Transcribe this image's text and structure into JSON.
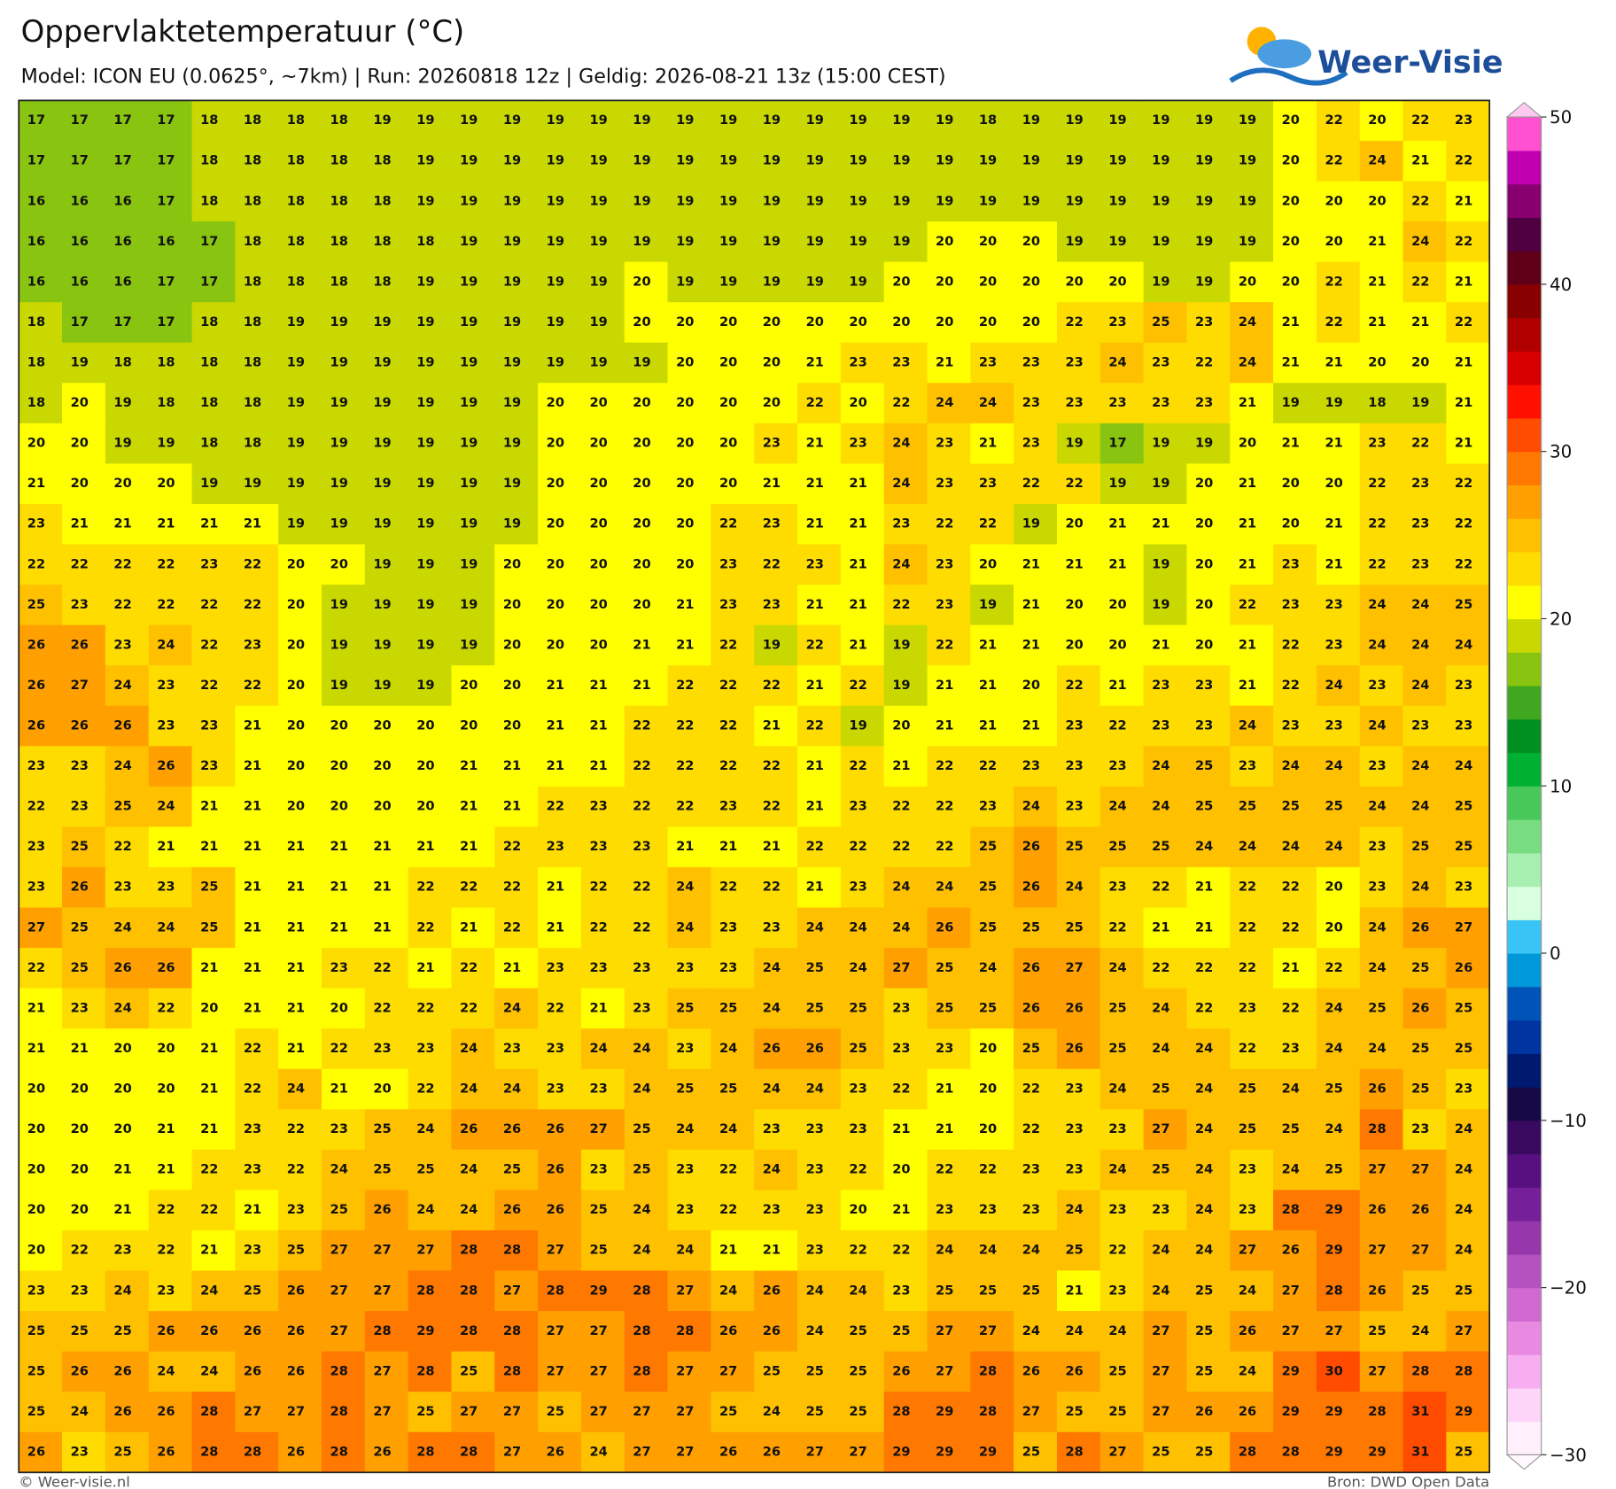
{
  "header": {
    "title": "Oppervlaktetemperatuur (°C)",
    "subtitle": "Model: ICON EU (0.0625°, ~7km)  |  Run: 20260818 12z  |  Geldig: 2026-08-21 13z (15:00 CEST)",
    "logo_text": "Weer-Visie"
  },
  "grid": {
    "rows": [
      [
        17,
        17,
        17,
        17,
        18,
        18,
        18,
        18,
        19,
        19,
        19,
        19,
        19,
        19,
        19,
        19,
        19,
        19,
        19,
        19,
        19,
        19,
        18,
        19,
        19,
        19,
        19,
        19,
        19,
        20,
        22,
        20,
        22,
        23
      ],
      [
        17,
        17,
        17,
        17,
        18,
        18,
        18,
        18,
        18,
        19,
        19,
        19,
        19,
        19,
        19,
        19,
        19,
        19,
        19,
        19,
        19,
        19,
        19,
        19,
        19,
        19,
        19,
        19,
        19,
        20,
        22,
        24,
        21,
        22
      ],
      [
        16,
        16,
        16,
        17,
        18,
        18,
        18,
        18,
        18,
        19,
        19,
        19,
        19,
        19,
        19,
        19,
        19,
        19,
        19,
        19,
        19,
        19,
        19,
        19,
        19,
        19,
        19,
        19,
        19,
        20,
        20,
        20,
        22,
        21
      ],
      [
        16,
        16,
        16,
        16,
        17,
        18,
        18,
        18,
        18,
        18,
        19,
        19,
        19,
        19,
        19,
        19,
        19,
        19,
        19,
        19,
        19,
        20,
        20,
        20,
        19,
        19,
        19,
        19,
        19,
        20,
        20,
        21,
        24,
        22
      ],
      [
        16,
        16,
        16,
        17,
        17,
        18,
        18,
        18,
        18,
        19,
        19,
        19,
        19,
        19,
        20,
        19,
        19,
        19,
        19,
        19,
        20,
        20,
        20,
        20,
        20,
        20,
        19,
        19,
        20,
        20,
        22,
        21,
        22,
        21
      ],
      [
        18,
        17,
        17,
        17,
        18,
        18,
        19,
        19,
        19,
        19,
        19,
        19,
        19,
        19,
        20,
        20,
        20,
        20,
        20,
        20,
        20,
        20,
        20,
        20,
        22,
        23,
        25,
        23,
        24,
        21,
        22,
        21,
        21,
        22
      ],
      [
        18,
        19,
        18,
        18,
        18,
        18,
        19,
        19,
        19,
        19,
        19,
        19,
        19,
        19,
        19,
        20,
        20,
        20,
        21,
        23,
        23,
        21,
        23,
        23,
        23,
        24,
        23,
        22,
        24,
        21,
        21,
        20,
        20,
        21
      ],
      [
        18,
        20,
        19,
        18,
        18,
        18,
        19,
        19,
        19,
        19,
        19,
        19,
        20,
        20,
        20,
        20,
        20,
        20,
        22,
        20,
        22,
        24,
        24,
        23,
        23,
        23,
        23,
        23,
        21,
        19,
        19,
        18,
        19,
        21
      ],
      [
        20,
        20,
        19,
        19,
        18,
        18,
        19,
        19,
        19,
        19,
        19,
        19,
        20,
        20,
        20,
        20,
        20,
        23,
        21,
        23,
        24,
        23,
        21,
        23,
        19,
        17,
        19,
        19,
        20,
        21,
        21,
        23,
        22,
        21
      ],
      [
        21,
        20,
        20,
        20,
        19,
        19,
        19,
        19,
        19,
        19,
        19,
        19,
        20,
        20,
        20,
        20,
        20,
        21,
        21,
        21,
        24,
        23,
        23,
        22,
        22,
        19,
        19,
        20,
        21,
        20,
        20,
        22,
        23,
        22
      ],
      [
        23,
        21,
        21,
        21,
        21,
        21,
        19,
        19,
        19,
        19,
        19,
        19,
        20,
        20,
        20,
        20,
        22,
        23,
        21,
        21,
        23,
        22,
        22,
        19,
        20,
        21,
        21,
        20,
        21,
        20,
        21,
        22,
        23,
        22
      ],
      [
        22,
        22,
        22,
        22,
        23,
        22,
        20,
        20,
        19,
        19,
        19,
        20,
        20,
        20,
        20,
        20,
        23,
        22,
        23,
        21,
        24,
        23,
        20,
        21,
        21,
        21,
        19,
        20,
        21,
        23,
        21,
        22,
        23,
        22
      ],
      [
        25,
        23,
        22,
        22,
        22,
        22,
        20,
        19,
        19,
        19,
        19,
        20,
        20,
        20,
        20,
        21,
        23,
        23,
        21,
        21,
        22,
        23,
        19,
        21,
        20,
        20,
        19,
        20,
        22,
        23,
        23,
        24,
        24,
        25
      ],
      [
        26,
        26,
        23,
        24,
        22,
        23,
        20,
        19,
        19,
        19,
        19,
        20,
        20,
        20,
        21,
        21,
        22,
        19,
        22,
        21,
        19,
        22,
        21,
        21,
        20,
        20,
        21,
        20,
        21,
        22,
        23,
        24,
        24,
        24
      ],
      [
        26,
        27,
        24,
        23,
        22,
        22,
        20,
        19,
        19,
        19,
        20,
        20,
        21,
        21,
        21,
        22,
        22,
        22,
        21,
        22,
        19,
        21,
        21,
        20,
        22,
        21,
        23,
        23,
        21,
        22,
        24,
        23,
        24,
        23
      ],
      [
        26,
        26,
        26,
        23,
        23,
        21,
        20,
        20,
        20,
        20,
        20,
        20,
        21,
        21,
        22,
        22,
        22,
        21,
        22,
        19,
        20,
        21,
        21,
        21,
        23,
        22,
        23,
        23,
        24,
        23,
        23,
        24,
        23,
        23
      ],
      [
        23,
        23,
        24,
        26,
        23,
        21,
        20,
        20,
        20,
        20,
        21,
        21,
        21,
        21,
        22,
        22,
        22,
        22,
        21,
        22,
        21,
        22,
        22,
        23,
        23,
        23,
        24,
        25,
        23,
        24,
        24,
        23,
        24,
        24
      ],
      [
        22,
        23,
        25,
        24,
        21,
        21,
        20,
        20,
        20,
        20,
        21,
        21,
        22,
        23,
        22,
        22,
        23,
        22,
        21,
        23,
        22,
        22,
        23,
        24,
        23,
        24,
        24,
        25,
        25,
        25,
        25,
        24,
        24,
        25
      ],
      [
        23,
        25,
        22,
        21,
        21,
        21,
        21,
        21,
        21,
        21,
        21,
        22,
        23,
        23,
        23,
        21,
        21,
        21,
        22,
        22,
        22,
        22,
        25,
        26,
        25,
        25,
        25,
        24,
        24,
        24,
        24,
        23,
        25,
        25
      ],
      [
        23,
        26,
        23,
        23,
        25,
        21,
        21,
        21,
        21,
        22,
        22,
        22,
        21,
        22,
        22,
        24,
        22,
        22,
        21,
        23,
        24,
        24,
        25,
        26,
        24,
        23,
        22,
        21,
        22,
        22,
        20,
        23,
        24,
        23
      ],
      [
        27,
        25,
        24,
        24,
        25,
        21,
        21,
        21,
        21,
        22,
        21,
        22,
        21,
        22,
        22,
        24,
        23,
        23,
        24,
        24,
        24,
        26,
        25,
        25,
        25,
        22,
        21,
        21,
        22,
        22,
        20,
        24,
        26,
        27
      ],
      [
        22,
        25,
        26,
        26,
        21,
        21,
        21,
        23,
        22,
        21,
        22,
        21,
        23,
        23,
        23,
        23,
        23,
        24,
        25,
        24,
        27,
        25,
        24,
        26,
        27,
        24,
        22,
        22,
        22,
        21,
        22,
        24,
        25,
        26
      ],
      [
        21,
        23,
        24,
        22,
        20,
        21,
        21,
        20,
        22,
        22,
        22,
        24,
        22,
        21,
        23,
        25,
        25,
        24,
        25,
        25,
        23,
        25,
        25,
        26,
        26,
        25,
        24,
        22,
        23,
        22,
        24,
        25,
        26,
        25
      ],
      [
        21,
        21,
        20,
        20,
        21,
        22,
        21,
        22,
        23,
        23,
        24,
        23,
        23,
        24,
        24,
        23,
        24,
        26,
        26,
        25,
        23,
        23,
        20,
        25,
        26,
        25,
        24,
        24,
        22,
        23,
        24,
        24,
        25,
        25
      ],
      [
        20,
        20,
        20,
        20,
        21,
        22,
        24,
        21,
        20,
        22,
        24,
        24,
        23,
        23,
        24,
        25,
        25,
        24,
        24,
        23,
        22,
        21,
        20,
        22,
        23,
        24,
        25,
        24,
        25,
        24,
        25,
        26,
        25,
        23
      ],
      [
        20,
        20,
        20,
        21,
        21,
        23,
        22,
        23,
        25,
        24,
        26,
        26,
        26,
        27,
        25,
        24,
        24,
        23,
        23,
        23,
        21,
        21,
        20,
        22,
        23,
        23,
        27,
        24,
        25,
        25,
        24,
        28,
        23,
        24
      ],
      [
        20,
        20,
        21,
        21,
        22,
        23,
        22,
        24,
        25,
        25,
        24,
        25,
        26,
        23,
        25,
        23,
        22,
        24,
        23,
        22,
        20,
        22,
        22,
        23,
        23,
        24,
        25,
        24,
        23,
        24,
        25,
        27,
        27,
        24
      ],
      [
        20,
        20,
        21,
        22,
        22,
        21,
        23,
        25,
        26,
        24,
        24,
        26,
        26,
        25,
        24,
        23,
        22,
        23,
        23,
        20,
        21,
        23,
        23,
        23,
        24,
        23,
        23,
        24,
        23,
        28,
        29,
        26,
        26,
        24
      ],
      [
        20,
        22,
        23,
        22,
        21,
        23,
        25,
        27,
        27,
        27,
        28,
        28,
        27,
        25,
        24,
        24,
        21,
        21,
        23,
        22,
        22,
        24,
        24,
        24,
        25,
        22,
        24,
        24,
        27,
        26,
        29,
        27,
        27,
        24
      ],
      [
        23,
        23,
        24,
        23,
        24,
        25,
        26,
        27,
        27,
        28,
        28,
        27,
        28,
        29,
        28,
        27,
        24,
        26,
        24,
        24,
        23,
        25,
        25,
        25,
        21,
        23,
        24,
        25,
        24,
        27,
        28,
        26,
        25,
        25
      ],
      [
        25,
        25,
        25,
        26,
        26,
        26,
        26,
        27,
        28,
        29,
        28,
        28,
        27,
        27,
        28,
        28,
        26,
        26,
        24,
        25,
        25,
        27,
        27,
        24,
        24,
        24,
        27,
        25,
        26,
        27,
        27,
        25,
        24,
        27
      ],
      [
        25,
        26,
        26,
        24,
        24,
        26,
        26,
        28,
        27,
        28,
        25,
        28,
        27,
        27,
        28,
        27,
        27,
        25,
        25,
        25,
        26,
        27,
        28,
        26,
        26,
        25,
        27,
        25,
        24,
        29,
        30,
        27,
        28,
        28
      ],
      [
        25,
        24,
        26,
        26,
        28,
        27,
        27,
        28,
        27,
        25,
        27,
        27,
        25,
        27,
        27,
        27,
        25,
        24,
        25,
        25,
        28,
        29,
        28,
        27,
        25,
        25,
        27,
        26,
        26,
        29,
        29,
        28,
        31,
        29
      ],
      [
        26,
        23,
        25,
        26,
        28,
        28,
        26,
        28,
        26,
        28,
        28,
        27,
        26,
        24,
        27,
        27,
        26,
        26,
        27,
        27,
        29,
        29,
        29,
        25,
        28,
        27,
        25,
        25,
        28,
        28,
        29,
        29,
        31,
        25
      ]
    ]
  },
  "colorbar": {
    "range": [
      -30,
      50
    ],
    "step": 2,
    "ticks": [
      50,
      40,
      30,
      20,
      10,
      0,
      {
        "value": -10,
        "label": "−10"
      },
      {
        "value": -20,
        "label": "−20"
      },
      {
        "value": -30,
        "label": "−30"
      }
    ],
    "colors": [
      "#fff0fc",
      "#fdd5f8",
      "#f7aef0",
      "#e88ae2",
      "#d06ad0",
      "#b452c0",
      "#9638ac",
      "#761f9a",
      "#581080",
      "#3a0a60",
      "#160a46",
      "#001a70",
      "#0034a0",
      "#0054b8",
      "#0098d8",
      "#38c4f4",
      "#d8ffe0",
      "#a8f0b0",
      "#78dc80",
      "#48c858",
      "#00b030",
      "#009020",
      "#40a820",
      "#88c410",
      "#c8d800",
      "#ffff00",
      "#ffdc00",
      "#ffc000",
      "#ffa000",
      "#ff7800",
      "#ff4c00",
      "#ff1000",
      "#d80000",
      "#b00000",
      "#880000",
      "#600018",
      "#500040",
      "#880070",
      "#c000b0",
      "#ff50d0"
    ]
  },
  "footer": {
    "left": "© Weer-visie.nl",
    "right": "Bron: DWD Open Data"
  }
}
